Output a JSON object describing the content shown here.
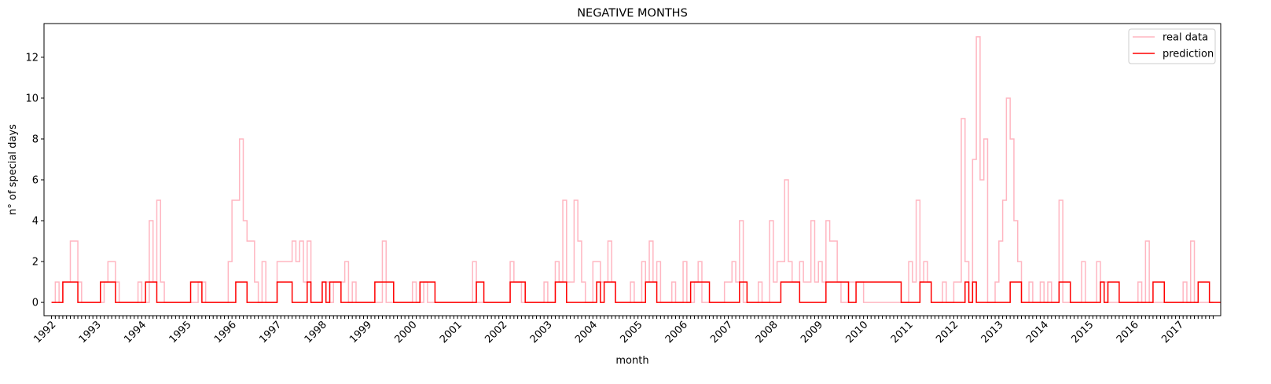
{
  "chart_data": {
    "type": "line",
    "title": "NEGATIVE MONTHS",
    "xlabel": "month",
    "ylabel": "n° of special days",
    "xlim": [
      "1991-11",
      "2017-12"
    ],
    "ylim": [
      -0.65,
      13.65
    ],
    "y_ticks": [
      0,
      2,
      4,
      6,
      8,
      10,
      12
    ],
    "x_tick_labels": [
      "1992",
      "1993",
      "1994",
      "1995",
      "1996",
      "1997",
      "1998",
      "1999",
      "2000",
      "2001",
      "2002",
      "2003",
      "2004",
      "2005",
      "2006",
      "2007",
      "2008",
      "2009",
      "2010",
      "2011",
      "2012",
      "2013",
      "2014",
      "2015",
      "2016",
      "2017"
    ],
    "x_minor_ticks": "monthly",
    "grid": false,
    "legend_position": "top-right",
    "step": "post",
    "series": [
      {
        "name": "real data",
        "color": "#ffb6c1",
        "points": [
          [
            "1992-01",
            0
          ],
          [
            "1992-02",
            1
          ],
          [
            "1992-03",
            0
          ],
          [
            "1992-04",
            1
          ],
          [
            "1992-06",
            3
          ],
          [
            "1992-08",
            1
          ],
          [
            "1992-09",
            0
          ],
          [
            "1993-03",
            1
          ],
          [
            "1993-04",
            2
          ],
          [
            "1993-06",
            1
          ],
          [
            "1993-07",
            0
          ],
          [
            "1993-12",
            1
          ],
          [
            "1994-01",
            0
          ],
          [
            "1994-03",
            4
          ],
          [
            "1994-04",
            1
          ],
          [
            "1994-05",
            5
          ],
          [
            "1994-06",
            1
          ],
          [
            "1994-07",
            0
          ],
          [
            "1995-04",
            1
          ],
          [
            "1995-06",
            0
          ],
          [
            "1995-12",
            2
          ],
          [
            "1996-01",
            5
          ],
          [
            "1996-03",
            8
          ],
          [
            "1996-04",
            4
          ],
          [
            "1996-05",
            3
          ],
          [
            "1996-07",
            1
          ],
          [
            "1996-08",
            0
          ],
          [
            "1996-09",
            2
          ],
          [
            "1996-10",
            0
          ],
          [
            "1997-01",
            2
          ],
          [
            "1997-05",
            3
          ],
          [
            "1997-06",
            2
          ],
          [
            "1997-07",
            3
          ],
          [
            "1997-08",
            1
          ],
          [
            "1997-09",
            3
          ],
          [
            "1997-10",
            0
          ],
          [
            "1998-01",
            1
          ],
          [
            "1998-03",
            0
          ],
          [
            "1998-04",
            1
          ],
          [
            "1998-07",
            2
          ],
          [
            "1998-08",
            0
          ],
          [
            "1998-09",
            1
          ],
          [
            "1998-10",
            0
          ],
          [
            "1999-05",
            3
          ],
          [
            "1999-06",
            0
          ],
          [
            "2000-01",
            1
          ],
          [
            "2000-02",
            0
          ],
          [
            "2000-04",
            1
          ],
          [
            "2000-05",
            0
          ],
          [
            "2001-05",
            2
          ],
          [
            "2001-06",
            0
          ],
          [
            "2002-03",
            2
          ],
          [
            "2002-04",
            1
          ],
          [
            "2002-06",
            0
          ],
          [
            "2002-12",
            1
          ],
          [
            "2003-01",
            0
          ],
          [
            "2003-03",
            2
          ],
          [
            "2003-04",
            1
          ],
          [
            "2003-05",
            5
          ],
          [
            "2003-06",
            1
          ],
          [
            "2003-08",
            5
          ],
          [
            "2003-09",
            3
          ],
          [
            "2003-10",
            1
          ],
          [
            "2003-11",
            0
          ],
          [
            "2004-01",
            2
          ],
          [
            "2004-03",
            1
          ],
          [
            "2004-05",
            3
          ],
          [
            "2004-06",
            1
          ],
          [
            "2004-07",
            0
          ],
          [
            "2004-11",
            1
          ],
          [
            "2004-12",
            0
          ],
          [
            "2005-02",
            2
          ],
          [
            "2005-03",
            1
          ],
          [
            "2005-04",
            3
          ],
          [
            "2005-05",
            1
          ],
          [
            "2005-06",
            2
          ],
          [
            "2005-07",
            0
          ],
          [
            "2005-10",
            1
          ],
          [
            "2005-11",
            0
          ],
          [
            "2006-01",
            2
          ],
          [
            "2006-02",
            0
          ],
          [
            "2006-04",
            1
          ],
          [
            "2006-05",
            2
          ],
          [
            "2006-06",
            0
          ],
          [
            "2006-12",
            1
          ],
          [
            "2007-02",
            2
          ],
          [
            "2007-03",
            1
          ],
          [
            "2007-04",
            4
          ],
          [
            "2007-05",
            0
          ],
          [
            "2007-09",
            1
          ],
          [
            "2007-10",
            0
          ],
          [
            "2007-12",
            4
          ],
          [
            "2008-01",
            1
          ],
          [
            "2008-02",
            2
          ],
          [
            "2008-04",
            6
          ],
          [
            "2008-05",
            2
          ],
          [
            "2008-06",
            1
          ],
          [
            "2008-08",
            2
          ],
          [
            "2008-09",
            1
          ],
          [
            "2008-11",
            4
          ],
          [
            "2008-12",
            1
          ],
          [
            "2009-01",
            2
          ],
          [
            "2009-02",
            1
          ],
          [
            "2009-03",
            4
          ],
          [
            "2009-04",
            3
          ],
          [
            "2009-06",
            1
          ],
          [
            "2009-07",
            0
          ],
          [
            "2009-09",
            1
          ],
          [
            "2010-01",
            0
          ],
          [
            "2011-01",
            2
          ],
          [
            "2011-02",
            1
          ],
          [
            "2011-03",
            5
          ],
          [
            "2011-04",
            1
          ],
          [
            "2011-05",
            2
          ],
          [
            "2011-06",
            1
          ],
          [
            "2011-07",
            0
          ],
          [
            "2011-10",
            1
          ],
          [
            "2011-11",
            0
          ],
          [
            "2012-01",
            1
          ],
          [
            "2012-03",
            9
          ],
          [
            "2012-04",
            2
          ],
          [
            "2012-05",
            0
          ],
          [
            "2012-06",
            7
          ],
          [
            "2012-07",
            13
          ],
          [
            "2012-08",
            6
          ],
          [
            "2012-09",
            8
          ],
          [
            "2012-10",
            0
          ],
          [
            "2012-12",
            1
          ],
          [
            "2013-01",
            3
          ],
          [
            "2013-02",
            5
          ],
          [
            "2013-03",
            10
          ],
          [
            "2013-04",
            8
          ],
          [
            "2013-05",
            4
          ],
          [
            "2013-06",
            2
          ],
          [
            "2013-07",
            0
          ],
          [
            "2013-09",
            1
          ],
          [
            "2013-10",
            0
          ],
          [
            "2013-12",
            1
          ],
          [
            "2014-01",
            0
          ],
          [
            "2014-02",
            1
          ],
          [
            "2014-03",
            0
          ],
          [
            "2014-05",
            5
          ],
          [
            "2014-06",
            0
          ],
          [
            "2014-11",
            2
          ],
          [
            "2014-12",
            0
          ],
          [
            "2015-03",
            2
          ],
          [
            "2015-04",
            1
          ],
          [
            "2015-06",
            0
          ],
          [
            "2016-02",
            1
          ],
          [
            "2016-03",
            0
          ],
          [
            "2016-04",
            3
          ],
          [
            "2016-05",
            0
          ],
          [
            "2017-02",
            1
          ],
          [
            "2017-03",
            0
          ],
          [
            "2017-04",
            3
          ],
          [
            "2017-05",
            0
          ],
          [
            "2017-10",
            0
          ]
        ]
      },
      {
        "name": "prediction",
        "color": "#ff0000",
        "points": [
          [
            "1992-01",
            0
          ],
          [
            "1992-04",
            1
          ],
          [
            "1992-08",
            0
          ],
          [
            "1993-02",
            1
          ],
          [
            "1993-06",
            0
          ],
          [
            "1994-02",
            1
          ],
          [
            "1994-05",
            0
          ],
          [
            "1995-02",
            1
          ],
          [
            "1995-05",
            0
          ],
          [
            "1996-02",
            1
          ],
          [
            "1996-05",
            0
          ],
          [
            "1997-01",
            1
          ],
          [
            "1997-05",
            0
          ],
          [
            "1997-09",
            1
          ],
          [
            "1997-10",
            0
          ],
          [
            "1998-01",
            1
          ],
          [
            "1998-02",
            0
          ],
          [
            "1998-03",
            1
          ],
          [
            "1998-06",
            0
          ],
          [
            "1999-03",
            1
          ],
          [
            "1999-08",
            0
          ],
          [
            "2000-03",
            1
          ],
          [
            "2000-07",
            0
          ],
          [
            "2001-06",
            1
          ],
          [
            "2001-08",
            0
          ],
          [
            "2002-03",
            1
          ],
          [
            "2002-07",
            0
          ],
          [
            "2003-03",
            1
          ],
          [
            "2003-06",
            0
          ],
          [
            "2004-02",
            1
          ],
          [
            "2004-03",
            0
          ],
          [
            "2004-04",
            1
          ],
          [
            "2004-07",
            0
          ],
          [
            "2005-03",
            1
          ],
          [
            "2005-06",
            0
          ],
          [
            "2006-03",
            1
          ],
          [
            "2006-08",
            0
          ],
          [
            "2007-04",
            1
          ],
          [
            "2007-06",
            0
          ],
          [
            "2008-03",
            1
          ],
          [
            "2008-08",
            0
          ],
          [
            "2009-03",
            1
          ],
          [
            "2009-09",
            0
          ],
          [
            "2009-11",
            1
          ],
          [
            "2010-11",
            0
          ],
          [
            "2011-04",
            1
          ],
          [
            "2011-07",
            0
          ],
          [
            "2012-04",
            1
          ],
          [
            "2012-05",
            0
          ],
          [
            "2012-06",
            1
          ],
          [
            "2012-07",
            0
          ],
          [
            "2013-04",
            1
          ],
          [
            "2013-07",
            0
          ],
          [
            "2014-05",
            1
          ],
          [
            "2014-08",
            0
          ],
          [
            "2015-04",
            1
          ],
          [
            "2015-05",
            0
          ],
          [
            "2015-06",
            1
          ],
          [
            "2015-09",
            0
          ],
          [
            "2016-06",
            1
          ],
          [
            "2016-09",
            0
          ],
          [
            "2017-06",
            1
          ],
          [
            "2017-09",
            0
          ],
          [
            "2017-12",
            0
          ]
        ]
      }
    ]
  }
}
